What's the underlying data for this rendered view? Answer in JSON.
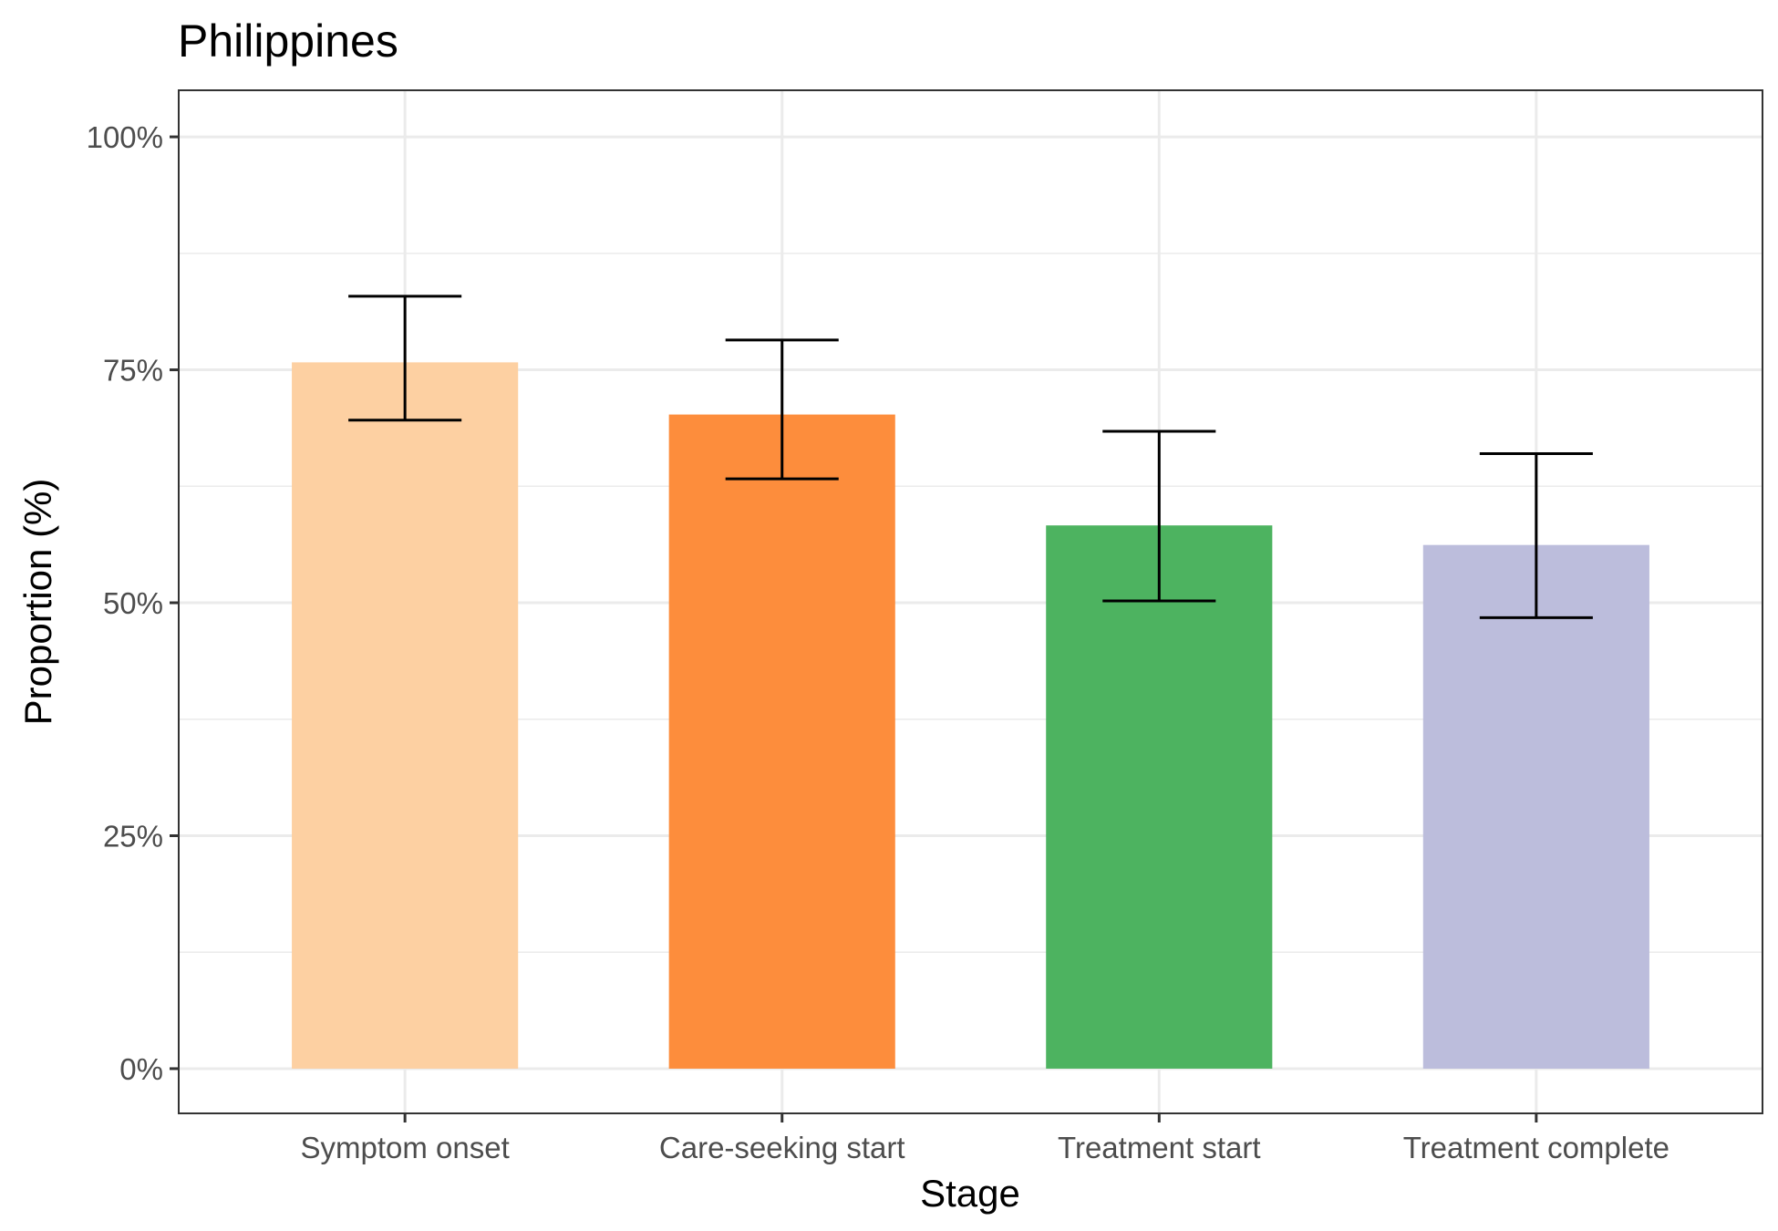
{
  "chart_data": {
    "type": "bar",
    "title": "Philippines",
    "xlabel": "Stage",
    "ylabel": "Proportion (%)",
    "categories": [
      "Symptom onset",
      "Care-seeking start",
      "Treatment start",
      "Treatment complete"
    ],
    "values": [
      75.8,
      70.2,
      58.3,
      56.2
    ],
    "error_low": [
      69.6,
      63.3,
      50.2,
      48.4
    ],
    "error_high": [
      82.9,
      78.2,
      68.4,
      66.0
    ],
    "colors": [
      "#fdd0a2",
      "#fd8d3c",
      "#4db360",
      "#bcbddc"
    ],
    "ylim": [
      -4.8,
      105
    ],
    "yticks": [
      0,
      25,
      50,
      75,
      100
    ],
    "ytick_labels": [
      "0%",
      "25%",
      "50%",
      "75%",
      "100%"
    ],
    "grid": true,
    "legend": "none"
  }
}
